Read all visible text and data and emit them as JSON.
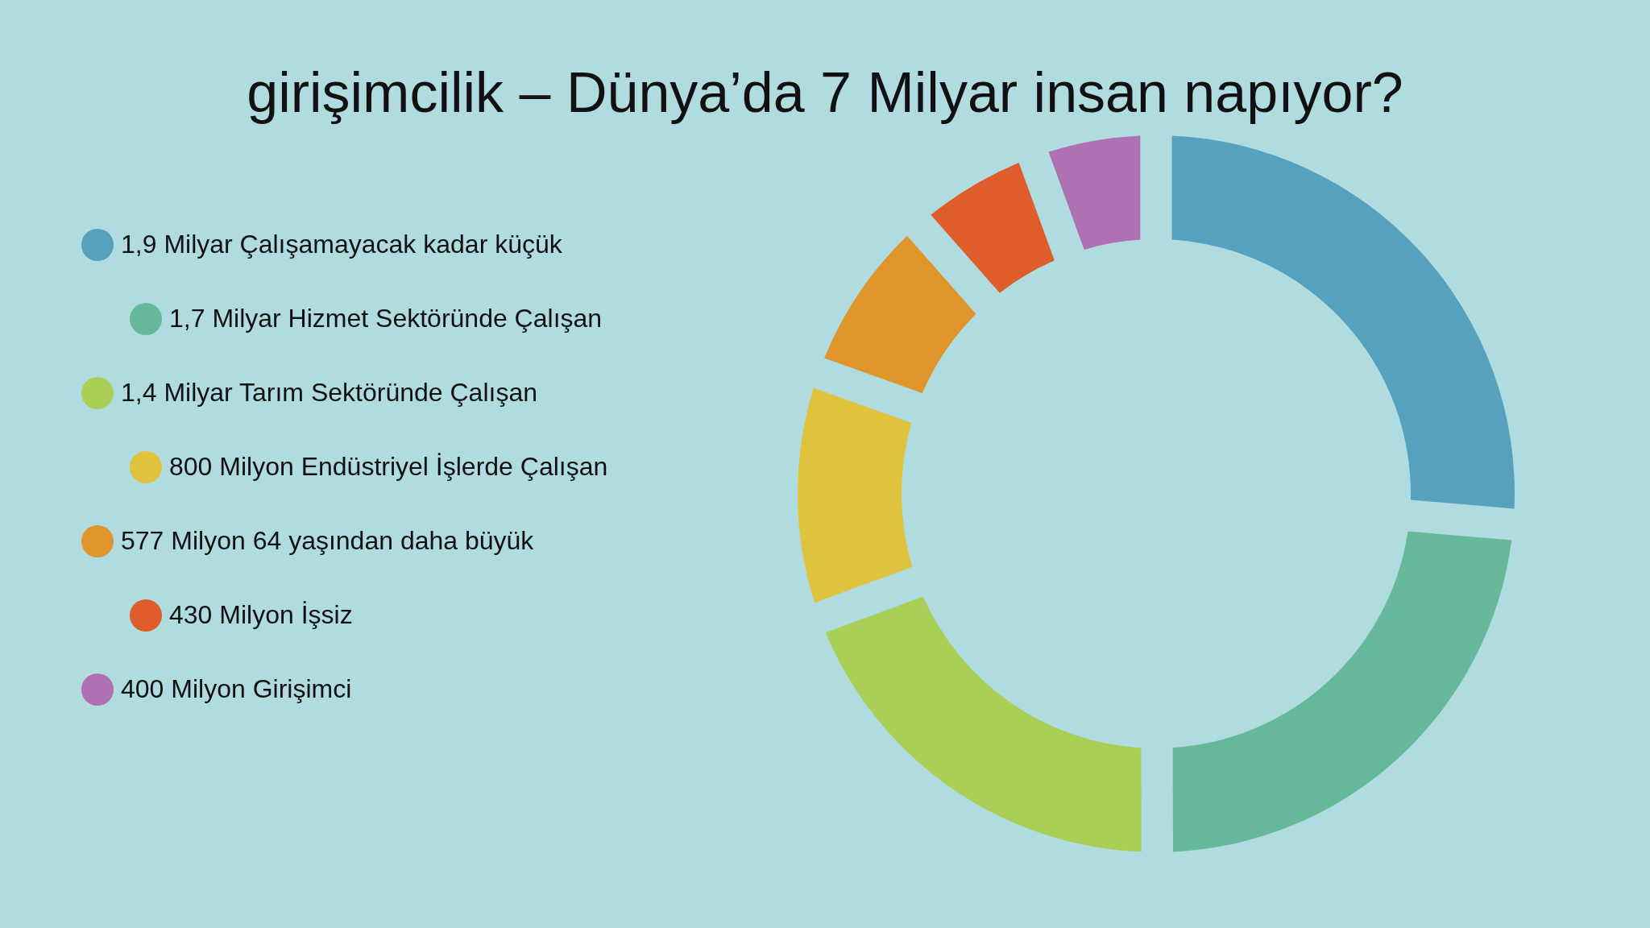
{
  "chart_data": {
    "type": "donut",
    "title": "girişimcilik – Dünya’da 7 Milyar insan napıyor?",
    "categories": [
      "1,9 Milyar Çalışamayacak kadar küçük",
      "1,7 Milyar Hizmet Sektöründe Çalışan",
      "1,4 Milyar Tarım Sektöründe Çalışan",
      "800 Milyon Endüstriyel İşlerde Çalışan",
      "577 Milyon 64 yaşından daha büyük",
      "430 Milyon İşsiz",
      "400 Milyon Girişimci"
    ],
    "values": [
      1900,
      1700,
      1400,
      800,
      577,
      430,
      400
    ],
    "colors": [
      "#55a1be",
      "#66b89a",
      "#a9cf57",
      "#dfc23e",
      "#e0952a",
      "#de5d2a",
      "#b071b2"
    ],
    "legend": "left"
  }
}
